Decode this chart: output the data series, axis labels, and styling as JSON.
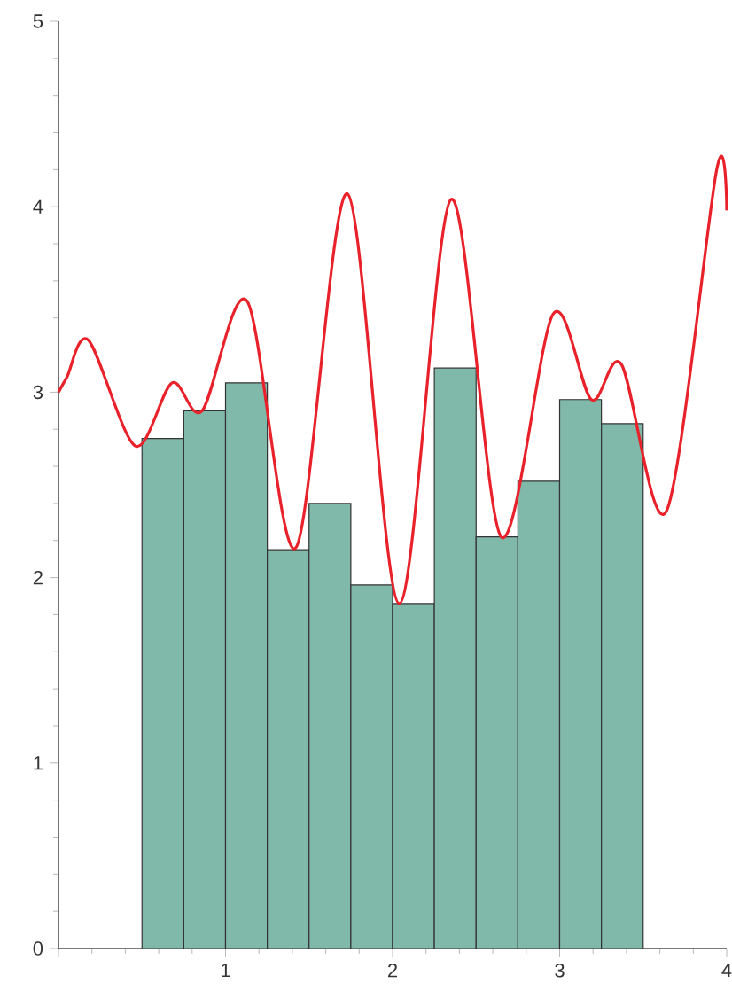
{
  "chart_data": {
    "type": "histogram",
    "color": "#80b8aa",
    "bins": [
      0.5,
      0.75,
      1.0,
      1.25,
      1.5,
      1.75,
      2.0,
      2.25,
      2.5,
      2.75,
      3.0,
      3.25,
      3.5
    ],
    "values": [
      2.75,
      2.9,
      3.05,
      2.15,
      2.4,
      1.96,
      1.86,
      3.13,
      2.22,
      2.52,
      2.96,
      2.83
    ],
    "series": [
      {
        "type": "line",
        "color": "#e8212a",
        "x": [
          0,
          0.05,
          0.18,
          0.46,
          0.68,
          0.86,
          1.13,
          1.42,
          1.73,
          2.04,
          2.35,
          2.65,
          2.96,
          3.19,
          3.37,
          3.64,
          3.94,
          4.0
        ],
        "values": [
          3.0,
          3.08,
          3.28,
          2.71,
          3.05,
          2.9,
          3.49,
          2.16,
          4.07,
          1.86,
          4.04,
          2.22,
          3.42,
          2.96,
          3.15,
          2.36,
          4.2,
          3.98
        ]
      }
    ],
    "xlim": [
      0,
      4
    ],
    "ylim": [
      0,
      5
    ],
    "xticks": [
      {
        "value": 0,
        "label": null
      },
      1,
      2,
      3,
      4
    ],
    "yticks": [
      0,
      1,
      2,
      3,
      4,
      5
    ],
    "marker": "none",
    "line_style": "solid"
  }
}
